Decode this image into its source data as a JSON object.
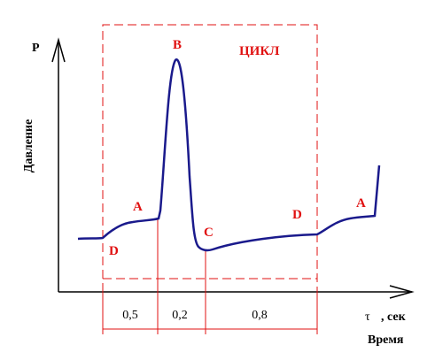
{
  "axes": {
    "y_label": "P",
    "y_title": "Давление",
    "x_symbol": "τ",
    "x_unit": ", сек",
    "x_title": "Время"
  },
  "cycle_label": "ЦИКЛ",
  "points": [
    "D",
    "A",
    "B",
    "C",
    "D",
    "A"
  ],
  "durations": [
    "0,5",
    "0,2",
    "0,8"
  ]
}
